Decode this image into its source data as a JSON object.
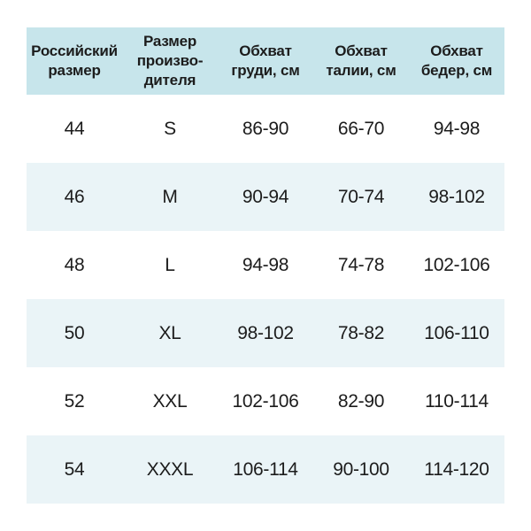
{
  "colors": {
    "header_bg": "#c7e5eb",
    "stripe_bg": "#eaf4f7",
    "row_bg": "#ffffff",
    "text_color": "#1c1c1c"
  },
  "table": {
    "columns": [
      {
        "label": "Российский\nразмер"
      },
      {
        "label": "Размер\nпроизво-\nдителя"
      },
      {
        "label": "Обхват\nгруди, см"
      },
      {
        "label": "Обхват\nталии, см"
      },
      {
        "label": "Обхват\nбедер, см"
      }
    ],
    "rows": [
      [
        "44",
        "S",
        "86-90",
        "66-70",
        "94-98"
      ],
      [
        "46",
        "M",
        "90-94",
        "70-74",
        "98-102"
      ],
      [
        "48",
        "L",
        "94-98",
        "74-78",
        "102-106"
      ],
      [
        "50",
        "XL",
        "98-102",
        "78-82",
        "106-110"
      ],
      [
        "52",
        "XXL",
        "102-106",
        "82-90",
        "110-114"
      ],
      [
        "54",
        "XXXL",
        "106-114",
        "90-100",
        "114-120"
      ]
    ]
  },
  "chart_data": {
    "type": "table",
    "title": "",
    "columns": [
      "Российский размер",
      "Размер производителя",
      "Обхват груди, см",
      "Обхват талии, см",
      "Обхват бедер, см"
    ],
    "rows": [
      [
        "44",
        "S",
        "86-90",
        "66-70",
        "94-98"
      ],
      [
        "46",
        "M",
        "90-94",
        "70-74",
        "98-102"
      ],
      [
        "48",
        "L",
        "94-98",
        "74-78",
        "102-106"
      ],
      [
        "50",
        "XL",
        "98-102",
        "78-82",
        "106-110"
      ],
      [
        "52",
        "XXL",
        "102-106",
        "82-90",
        "110-114"
      ],
      [
        "54",
        "XXXL",
        "106-114",
        "90-100",
        "114-120"
      ]
    ]
  }
}
